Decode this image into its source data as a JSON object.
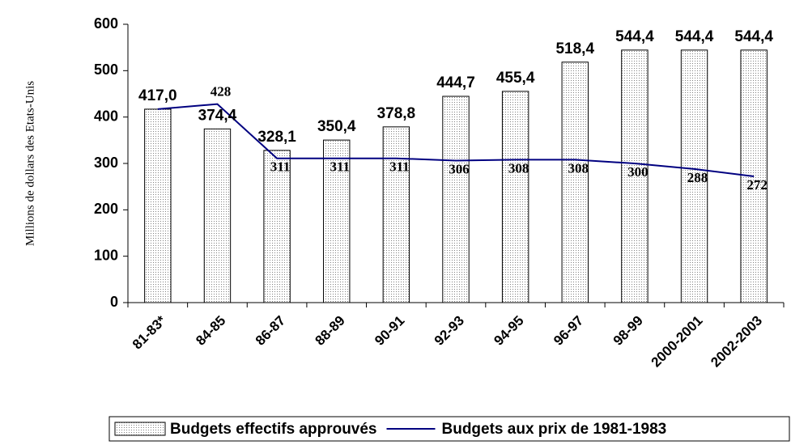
{
  "chart_data": {
    "type": "bar",
    "ylabel": "Millions de dollars des Etats-Unis",
    "categories": [
      "81-83*",
      "84-85",
      "86-87",
      "88-89",
      "90-91",
      "92-93",
      "94-95",
      "96-97",
      "98-99",
      "2000-2001",
      "2002-2003"
    ],
    "series": [
      {
        "name": "Budgets effectifs approuvés",
        "type": "bar",
        "color": "#808080",
        "values": [
          417.0,
          374.4,
          328.1,
          350.4,
          378.8,
          444.7,
          455.4,
          518.4,
          544.4,
          544.4,
          544.4
        ],
        "value_labels": [
          "417,0",
          "374,4",
          "328,1",
          "350,4",
          "378,8",
          "444,7",
          "455,4",
          "518,4",
          "544,4",
          "544,4",
          "544,4"
        ]
      },
      {
        "name": "Budgets aux prix de 1981-1983",
        "type": "line",
        "color": "#000080",
        "values": [
          417,
          428,
          311,
          311,
          311,
          306,
          308,
          308,
          300,
          288,
          272
        ],
        "value_labels": [
          null,
          "428",
          "311",
          "311",
          "311",
          "306",
          "308",
          "308",
          "300",
          "288",
          "272"
        ]
      }
    ],
    "ylim": [
      0,
      600
    ],
    "yticks": [
      0,
      100,
      200,
      300,
      400,
      500,
      600
    ],
    "legend": "bottom"
  }
}
